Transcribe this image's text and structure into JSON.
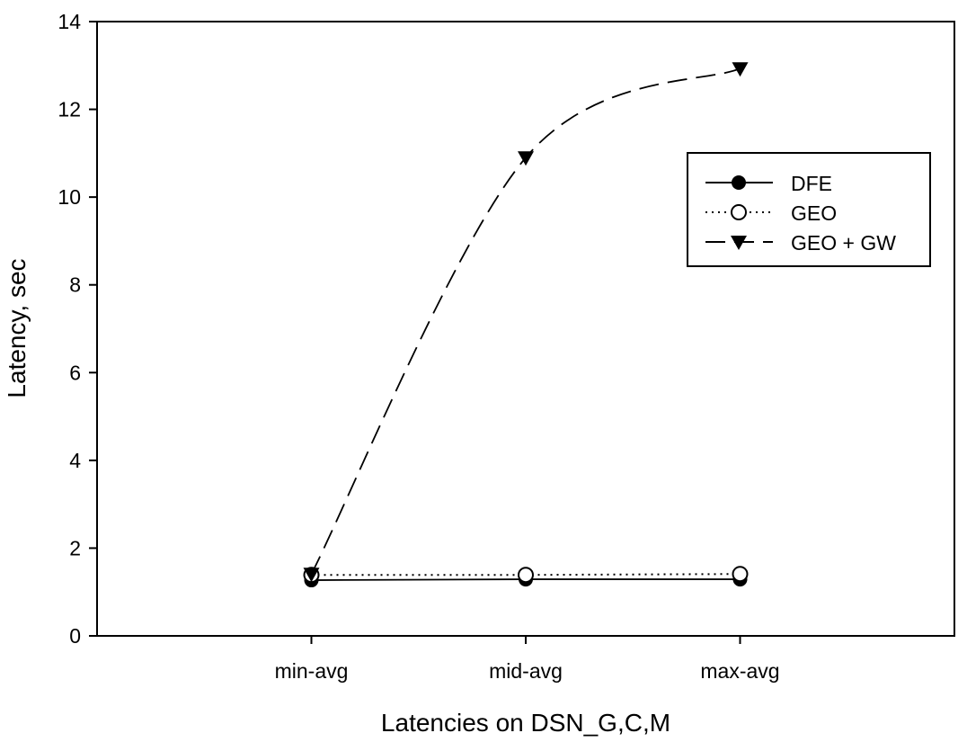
{
  "chart_data": {
    "type": "line",
    "title": "",
    "xlabel": "Latencies on DSN_G,C,M",
    "ylabel": "Latency, sec",
    "categories": [
      "min-avg",
      "mid-avg",
      "max-avg"
    ],
    "ylim": [
      0,
      14
    ],
    "yticks": [
      0,
      2,
      4,
      6,
      8,
      10,
      12,
      14
    ],
    "grid": false,
    "legend_position": "top-right",
    "series": [
      {
        "name": "DFE",
        "values": [
          1.27,
          1.29,
          1.29
        ],
        "line_style": "solid",
        "marker": "filled-circle",
        "color": "#000000"
      },
      {
        "name": "GEO",
        "values": [
          1.39,
          1.39,
          1.41
        ],
        "line_style": "dotted",
        "marker": "open-circle",
        "color": "#000000"
      },
      {
        "name": "GEO + GW",
        "values": [
          1.41,
          10.9,
          12.93
        ],
        "line_style": "dashed",
        "marker": "filled-triangle-down",
        "color": "#000000",
        "smoothed": true
      }
    ]
  }
}
